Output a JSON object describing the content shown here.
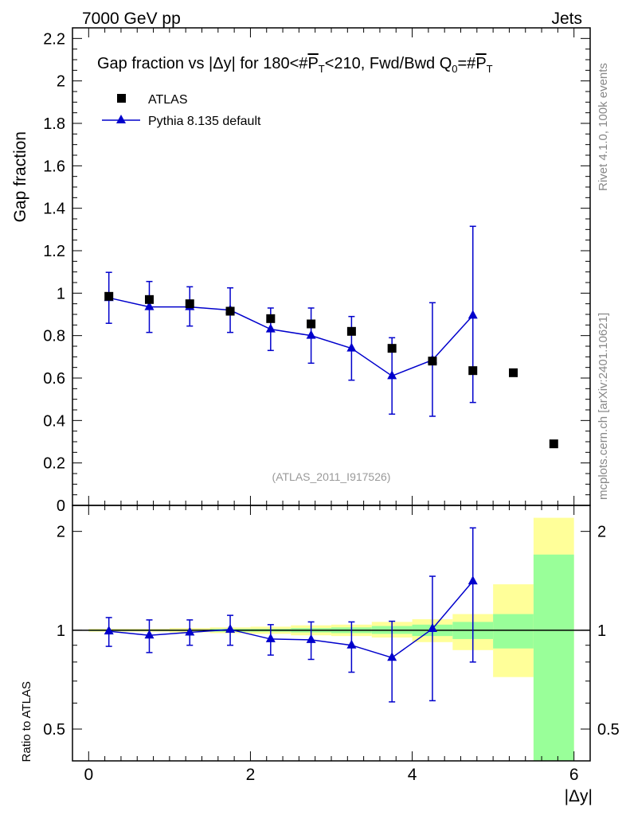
{
  "header": {
    "left": "7000 GeV pp",
    "right": "Jets"
  },
  "side_labels": {
    "rivet": "Rivet 4.1.0,  100k events",
    "mcplots": "mcplots.cern.ch [arXiv:2401.10621]"
  },
  "title": {
    "main": "Gap fraction vs |Δy| for 180<#",
    "pt": "P",
    "t_sub": "T",
    "mid": "<210, Fwd/Bwd Q",
    "q_sub": "0",
    "eq": "=#",
    "pt2": "P",
    "t_sub2": "T"
  },
  "watermark": "(ATLAS_2011_I917526)",
  "legend": [
    {
      "label": "ATLAS",
      "marker": "square",
      "color": "#000000"
    },
    {
      "label": "Pythia 8.135 default",
      "marker": "triangle",
      "color": "#0000cc"
    }
  ],
  "chart_data": [
    {
      "type": "scatter",
      "panel": "main",
      "ylabel": "Gap fraction",
      "xlabel": "|Δy|",
      "xlim": [
        -0.2,
        6.2
      ],
      "ylim": [
        0,
        2.25
      ],
      "yticks": [
        0,
        0.2,
        0.4,
        0.6,
        0.8,
        1,
        1.2,
        1.4,
        1.6,
        1.8,
        2,
        2.2
      ],
      "ytick_labels": [
        "0",
        "0.2",
        "0.4",
        "0.6",
        "0.8",
        "1",
        "1.2",
        "1.4",
        "1.6",
        "1.8",
        "2",
        "2.2"
      ],
      "series": [
        {
          "name": "ATLAS",
          "x": [
            0.25,
            0.75,
            1.25,
            1.75,
            2.25,
            2.75,
            3.25,
            3.75,
            4.25,
            4.75,
            5.25,
            5.75
          ],
          "y": [
            0.985,
            0.97,
            0.95,
            0.915,
            0.88,
            0.855,
            0.82,
            0.74,
            0.68,
            0.635,
            0.625,
            0.29
          ]
        },
        {
          "name": "Pythia 8.135 default",
          "x": [
            0.25,
            0.75,
            1.25,
            1.75,
            2.25,
            2.75,
            3.25,
            3.75,
            4.25,
            4.75
          ],
          "y": [
            0.978,
            0.935,
            0.935,
            0.92,
            0.83,
            0.8,
            0.74,
            0.61,
            0.685,
            0.895
          ],
          "yerr_low": [
            0.12,
            0.12,
            0.09,
            0.105,
            0.1,
            0.13,
            0.15,
            0.18,
            0.265,
            0.41
          ],
          "yerr_high": [
            0.12,
            0.12,
            0.095,
            0.105,
            0.1,
            0.13,
            0.15,
            0.18,
            0.27,
            0.42
          ]
        }
      ]
    },
    {
      "type": "scatter",
      "panel": "ratio",
      "ylabel": "Ratio to ATLAS",
      "xlabel": "|Δy|",
      "yscale": "log",
      "xlim": [
        -0.2,
        6.2
      ],
      "ylim": [
        0.4,
        2.4
      ],
      "xticks": [
        0,
        2,
        4,
        6
      ],
      "xtick_labels": [
        "0",
        "2",
        "4",
        "6"
      ],
      "yticks": [
        0.5,
        1,
        2
      ],
      "ytick_labels": [
        "0.5",
        "1",
        "2"
      ],
      "bands": {
        "x_low": [
          0,
          0.5,
          1,
          1.5,
          2,
          2.5,
          3,
          3.5,
          4,
          4.5,
          5,
          5.5
        ],
        "x_high": [
          0.5,
          1,
          1.5,
          2,
          2.5,
          3,
          3.5,
          4,
          4.5,
          5,
          5.5,
          6
        ],
        "stat_low": [
          0.995,
          0.995,
          0.995,
          0.99,
          0.99,
          0.985,
          0.98,
          0.975,
          0.96,
          0.94,
          0.88,
          0.4
        ],
        "stat_high": [
          1.005,
          1.005,
          1.005,
          1.01,
          1.01,
          1.015,
          1.02,
          1.03,
          1.04,
          1.06,
          1.12,
          1.7
        ],
        "tot_low": [
          0.99,
          0.99,
          0.985,
          0.98,
          0.975,
          0.965,
          0.96,
          0.95,
          0.92,
          0.87,
          0.72,
          0.4
        ],
        "tot_high": [
          1.01,
          1.01,
          1.015,
          1.02,
          1.025,
          1.035,
          1.04,
          1.06,
          1.08,
          1.12,
          1.38,
          2.2
        ],
        "stat_color": "#99ff99",
        "tot_color": "#ffff99"
      },
      "series": [
        {
          "name": "Pythia 8.135 default",
          "x": [
            0.25,
            0.75,
            1.25,
            1.75,
            2.25,
            2.75,
            3.25,
            3.75,
            4.25,
            4.75
          ],
          "y": [
            0.993,
            0.965,
            0.985,
            1.005,
            0.94,
            0.935,
            0.9,
            0.825,
            1.01,
            1.41
          ],
          "yerr_low": [
            0.1,
            0.11,
            0.085,
            0.105,
            0.1,
            0.12,
            0.155,
            0.22,
            0.4,
            0.61
          ],
          "yerr_high": [
            0.1,
            0.11,
            0.09,
            0.105,
            0.1,
            0.125,
            0.16,
            0.24,
            0.45,
            0.64
          ]
        }
      ]
    }
  ]
}
